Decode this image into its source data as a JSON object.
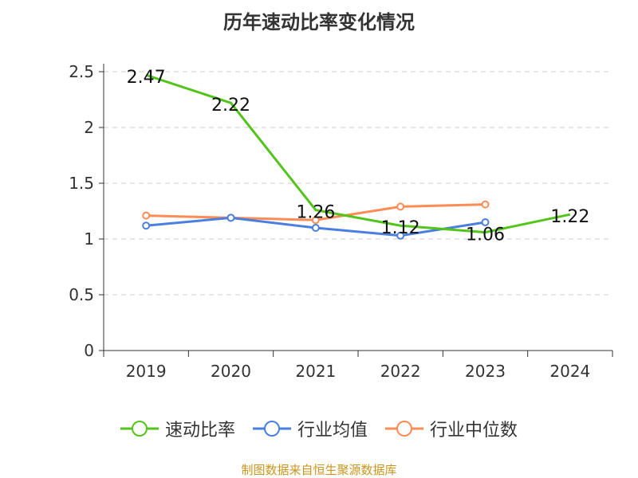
{
  "chart_data": {
    "type": "line",
    "title": "历年速动比率变化情况",
    "categories": [
      "2019",
      "2020",
      "2021",
      "2022",
      "2023",
      "2024"
    ],
    "ylim": [
      0,
      2.5
    ],
    "yticks": [
      "0",
      "0.5",
      "1",
      "1.5",
      "2",
      "2.5"
    ],
    "grid": true,
    "legend_position": "bottom",
    "series": [
      {
        "name": "速动比率",
        "color": "#52c41a",
        "values": [
          2.47,
          2.22,
          1.26,
          1.12,
          1.06,
          1.22
        ],
        "labels": [
          "2.47",
          "2.22",
          "1.26",
          "1.12",
          "1.06",
          "1.22"
        ]
      },
      {
        "name": "行业均值",
        "color": "#4a7fe0",
        "values": [
          1.12,
          1.19,
          1.1,
          1.03,
          1.15,
          null
        ]
      },
      {
        "name": "行业中位数",
        "color": "#ff8c55",
        "values": [
          1.21,
          1.19,
          1.17,
          1.29,
          1.31,
          null
        ]
      }
    ]
  },
  "source": "制图数据来自恒生聚源数据库"
}
